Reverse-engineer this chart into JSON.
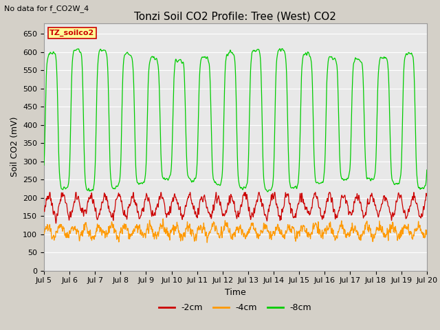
{
  "title": "Tonzi Soil CO2 Profile: Tree (West) CO2",
  "no_data_text": "No data for f_CO2W_4",
  "xlabel": "Time",
  "ylabel": "Soil CO2 (mV)",
  "ylim": [
    0,
    680
  ],
  "yticks": [
    0,
    50,
    100,
    150,
    200,
    250,
    300,
    350,
    400,
    450,
    500,
    550,
    600,
    650
  ],
  "x_start_day": 5,
  "x_end_day": 20,
  "x_tick_days": [
    5,
    6,
    7,
    8,
    9,
    10,
    11,
    12,
    13,
    14,
    15,
    16,
    17,
    18,
    19,
    20
  ],
  "neg2cm_label": "-2cm",
  "neg2cm_color": "#cc0000",
  "neg4cm_label": "-4cm",
  "neg4cm_color": "#ff9900",
  "neg8cm_label": "-8cm",
  "neg8cm_color": "#00cc00",
  "legend_box_label": "TZ_soilco2",
  "legend_box_bg": "#ffff99",
  "legend_box_edge": "#cc0000",
  "legend_box_text_color": "#cc0000",
  "fig_bg_color": "#d4d0c8",
  "plot_bg_color": "#e8e8e8",
  "grid_color": "#ffffff",
  "title_fontsize": 11,
  "axis_fontsize": 9,
  "tick_fontsize": 8,
  "legend_fontsize": 9
}
